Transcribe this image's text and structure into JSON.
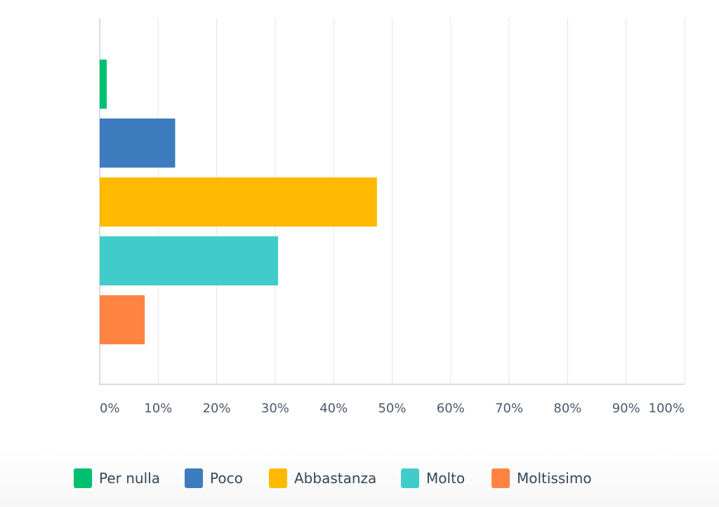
{
  "chart_data": {
    "type": "bar",
    "orientation": "horizontal",
    "categories": [
      "Per nulla",
      "Poco",
      "Abbastanza",
      "Molto",
      "Moltissimo"
    ],
    "values": [
      1.2,
      12.9,
      47.4,
      30.5,
      7.7
    ],
    "colors": [
      "#00bf6f",
      "#3d7cbf",
      "#ffba00",
      "#41cccc",
      "#ff8442"
    ],
    "x_ticks": [
      "0%",
      "10%",
      "20%",
      "30%",
      "40%",
      "50%",
      "60%",
      "70%",
      "80%",
      "90%",
      "100%"
    ],
    "xlim": [
      0,
      100
    ],
    "grid": true,
    "legend_position": "bottom"
  },
  "legend": {
    "items": [
      {
        "label": "Per nulla",
        "color": "#00bf6f"
      },
      {
        "label": "Poco",
        "color": "#3d7cbf"
      },
      {
        "label": "Abbastanza",
        "color": "#ffba00"
      },
      {
        "label": "Molto",
        "color": "#41cccc"
      },
      {
        "label": "Moltissimo",
        "color": "#ff8442"
      }
    ]
  }
}
